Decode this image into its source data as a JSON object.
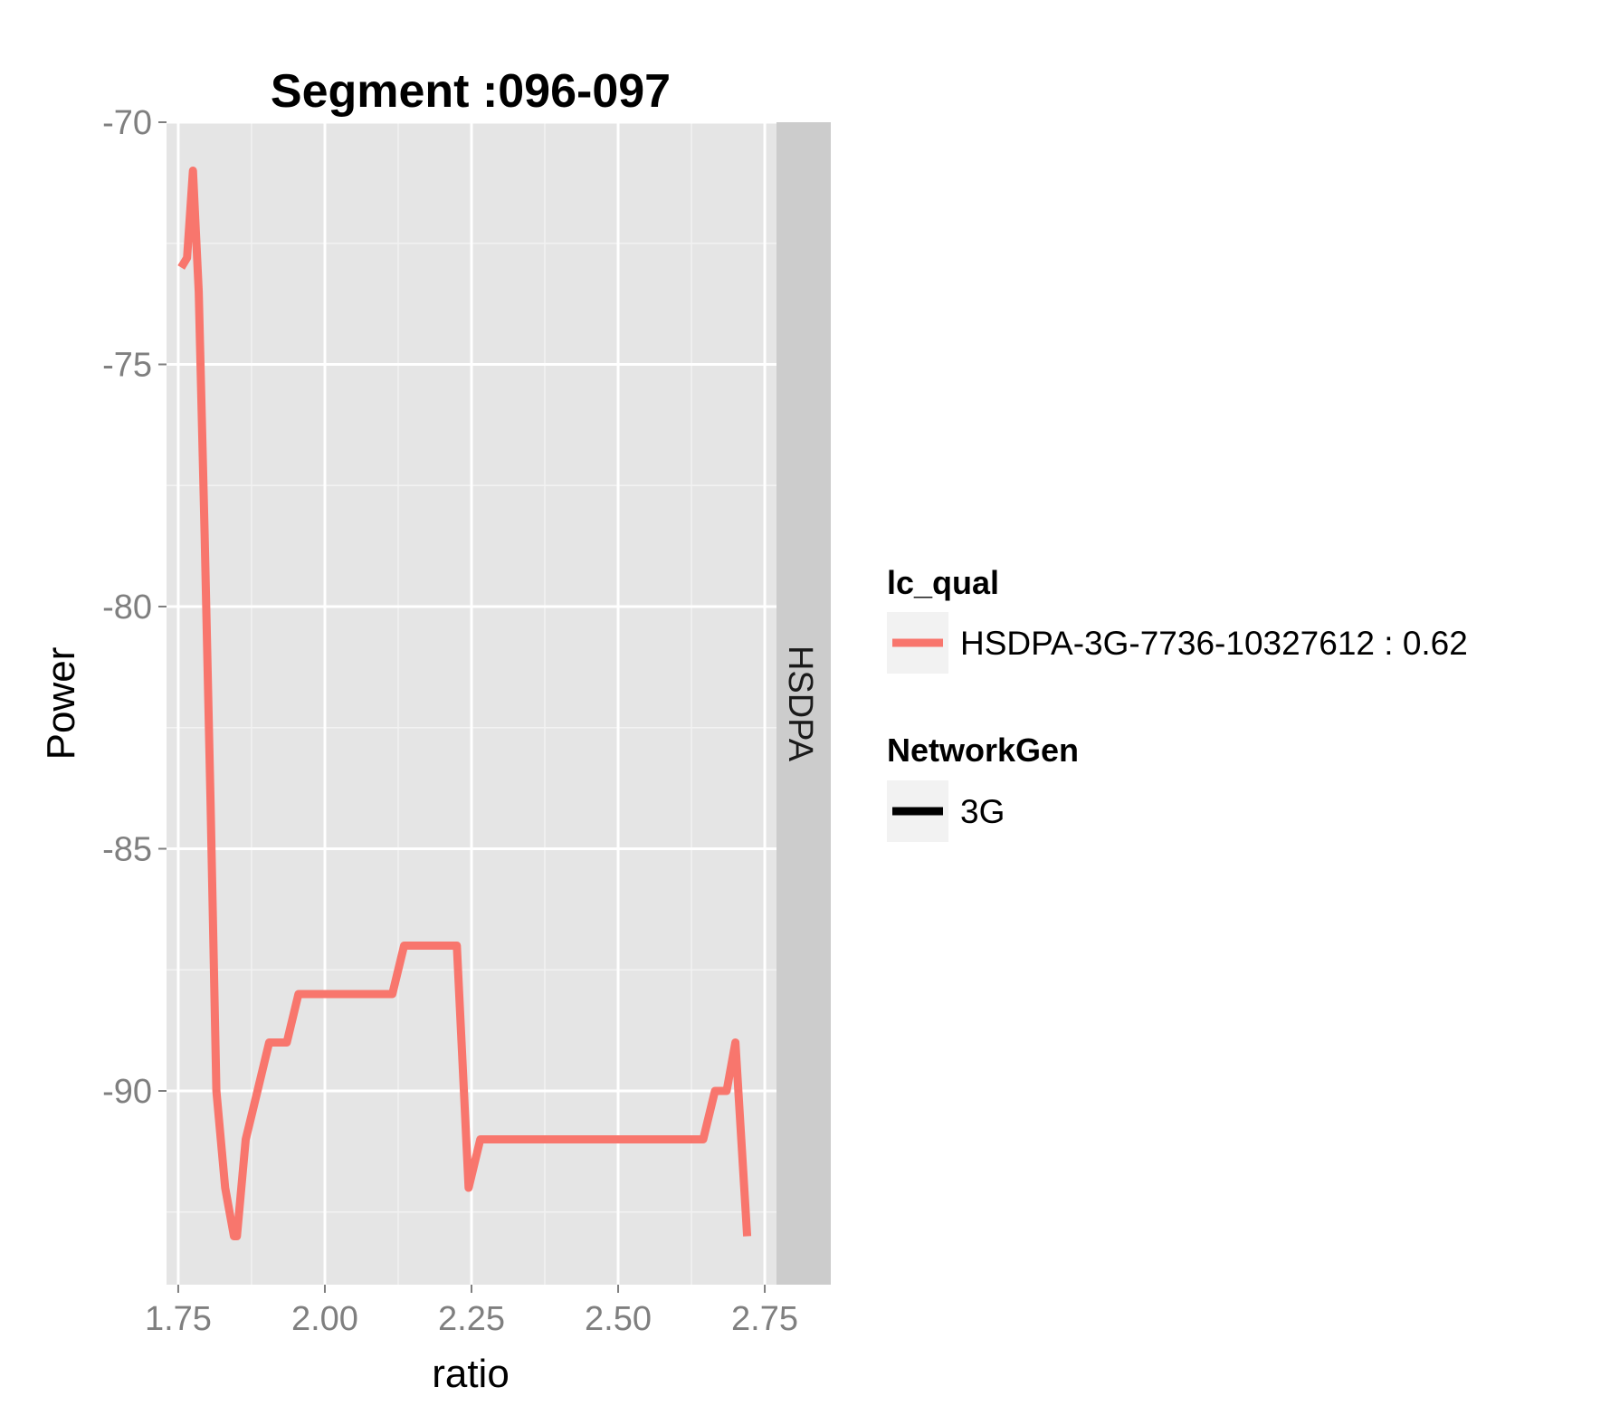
{
  "chart_data": {
    "type": "line",
    "title": "Segment :096-097",
    "xlabel": "ratio",
    "ylabel": "Power",
    "xlim": [
      1.73,
      2.77
    ],
    "ylim": [
      -94,
      -70
    ],
    "x_ticks": [
      "1.75",
      "2.00",
      "2.25",
      "2.50",
      "2.75"
    ],
    "y_ticks": [
      "-70",
      "-75",
      "-80",
      "-85",
      "-90"
    ],
    "facet_strip": "HSDPA",
    "grid": true,
    "legend_placement": "right",
    "series": [
      {
        "name": "HSDPA-3G-7736-10327612 : 0.62",
        "color": "#F8766D",
        "x": [
          1.755,
          1.765,
          1.775,
          1.785,
          1.795,
          1.805,
          1.815,
          1.83,
          1.845,
          1.85,
          1.865,
          1.885,
          1.905,
          1.935,
          1.955,
          1.97,
          2.02,
          2.08,
          2.115,
          2.135,
          2.16,
          2.2,
          2.225,
          2.245,
          2.265,
          2.3,
          2.4,
          2.5,
          2.6,
          2.645,
          2.665,
          2.685,
          2.7,
          2.72
        ],
        "y": [
          -73,
          -72.8,
          -71,
          -73.5,
          -78.5,
          -84,
          -90,
          -92,
          -93,
          -93,
          -91,
          -90,
          -89,
          -89,
          -88,
          -88,
          -88,
          -88,
          -88,
          -87,
          -87,
          -87,
          -87,
          -92,
          -91,
          -91,
          -91,
          -91,
          -91,
          -91,
          -90,
          -90,
          -89,
          -93
        ]
      }
    ],
    "legends": [
      {
        "title": "lc_qual",
        "entries": [
          {
            "label": "HSDPA-3G-7736-10327612 : 0.62",
            "color": "#F8766D"
          }
        ]
      },
      {
        "title": "NetworkGen",
        "entries": [
          {
            "label": "3G",
            "color": "#000000"
          }
        ]
      }
    ]
  }
}
